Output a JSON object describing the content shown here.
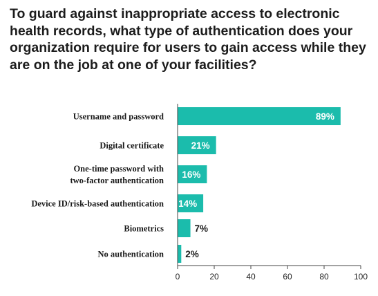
{
  "title": "To guard against inappropriate access to electronic health records, what type of authentication does your organization require for users to gain access while they are on the job at one of your facilities?",
  "colors": {
    "bar": "#1bbcac",
    "inside_label": "#ffffff",
    "outside_label": "#1a1a1a",
    "axis": "#444444"
  },
  "chart_data": {
    "type": "bar",
    "orientation": "horizontal",
    "categories": [
      [
        "Username and password"
      ],
      [
        "Digital certificate"
      ],
      [
        "One-time password with",
        "two-factor authentication"
      ],
      [
        "Device ID/risk-based authentication"
      ],
      [
        "Biometrics"
      ],
      [
        "No authentication"
      ]
    ],
    "values": [
      89,
      21,
      16,
      14,
      7,
      2
    ],
    "value_labels": [
      "89%",
      "21%",
      "16%",
      "14%",
      "7%",
      "2%"
    ],
    "xlim": [
      0,
      100
    ],
    "xticks": [
      0,
      20,
      40,
      60,
      80,
      100
    ],
    "grid": false
  }
}
